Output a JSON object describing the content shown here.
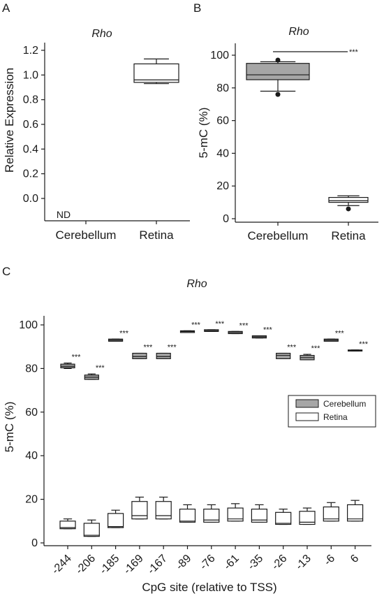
{
  "colors": {
    "cerebellum": "#a6a6a6",
    "retina": "#ffffff",
    "stroke": "#1a1a1a"
  },
  "chart_data": [
    {
      "panel": "A",
      "type": "box",
      "title": "Rho",
      "ylabel": "Relative Expression",
      "ylim": [
        -0.1,
        1.2
      ],
      "yticks": [
        "0.0",
        "0.2",
        "0.4",
        "0.6",
        "0.8",
        "1.0",
        "1.2"
      ],
      "categories": [
        "Cerebellum",
        "Retina"
      ],
      "boxes": [
        {
          "category": "Cerebellum",
          "label": "ND"
        },
        {
          "category": "Retina",
          "min": 0.93,
          "q1": 0.94,
          "median": 0.96,
          "q3": 1.09,
          "max": 1.13
        }
      ]
    },
    {
      "panel": "B",
      "type": "box",
      "title": "Rho",
      "ylabel": "5-mC (%)",
      "ylim": [
        0,
        100
      ],
      "yticks": [
        "0",
        "20",
        "40",
        "60",
        "80",
        "100"
      ],
      "categories": [
        "Cerebellum",
        "Retina"
      ],
      "boxes": [
        {
          "category": "Cerebellum",
          "min": 78,
          "q1": 85,
          "median": 88,
          "q3": 95,
          "max": 96,
          "outliers": [
            76,
            97
          ]
        },
        {
          "category": "Retina",
          "min": 8,
          "q1": 10,
          "median": 11,
          "q3": 13,
          "max": 14,
          "outliers": [
            6
          ]
        }
      ],
      "significance": "***"
    },
    {
      "panel": "C",
      "type": "box",
      "title": "Rho",
      "xlabel": "CpG site (relative to TSS)",
      "ylabel": "5-mC (%)",
      "ylim": [
        0,
        100
      ],
      "yticks": [
        "0",
        "20",
        "40",
        "60",
        "80",
        "100"
      ],
      "categories": [
        "-244",
        "-206",
        "-185",
        "-169",
        "-167",
        "-89",
        "-76",
        "-61",
        "-35",
        "-26",
        "-13",
        "-6",
        "6"
      ],
      "legend": {
        "position": "right",
        "entries": [
          "Cerebellum",
          "Retina"
        ]
      },
      "significance": [
        "***",
        "***",
        "***",
        "***",
        "***",
        "***",
        "***",
        "***",
        "***",
        "***",
        "***",
        "***",
        "***"
      ],
      "series": [
        {
          "name": "Cerebellum",
          "boxes": [
            {
              "min": 80,
              "q1": 80.3,
              "median": 81,
              "q3": 82,
              "max": 82.5
            },
            {
              "min": 75,
              "q1": 75,
              "median": 76,
              "q3": 77,
              "max": 77.5
            },
            {
              "min": 92.5,
              "q1": 92.5,
              "median": 93,
              "q3": 93.5,
              "max": 93.5
            },
            {
              "min": 84.5,
              "q1": 84.5,
              "median": 85.5,
              "q3": 87,
              "max": 87
            },
            {
              "min": 84.5,
              "q1": 84.5,
              "median": 85.5,
              "q3": 87,
              "max": 87
            },
            {
              "min": 96.5,
              "q1": 96.5,
              "median": 97,
              "q3": 97.3,
              "max": 97.3
            },
            {
              "min": 97,
              "q1": 97,
              "median": 97.3,
              "q3": 97.8,
              "max": 97.8
            },
            {
              "min": 96,
              "q1": 96,
              "median": 96.5,
              "q3": 97,
              "max": 97
            },
            {
              "min": 94,
              "q1": 94,
              "median": 94.5,
              "q3": 95,
              "max": 95
            },
            {
              "min": 84.5,
              "q1": 84.5,
              "median": 86,
              "q3": 87,
              "max": 87
            },
            {
              "min": 84,
              "q1": 84,
              "median": 85,
              "q3": 86,
              "max": 86.5
            },
            {
              "min": 92.5,
              "q1": 92.5,
              "median": 93,
              "q3": 93.5,
              "max": 93.5
            },
            {
              "min": 88,
              "q1": 88,
              "median": 88.3,
              "q3": 88.5,
              "max": 88.5
            }
          ]
        },
        {
          "name": "Retina",
          "boxes": [
            {
              "min": 6.5,
              "q1": 6.5,
              "median": 7,
              "q3": 10,
              "max": 11
            },
            {
              "min": 3,
              "q1": 3,
              "median": 3.5,
              "q3": 9,
              "max": 10.5
            },
            {
              "min": 7,
              "q1": 7,
              "median": 7.5,
              "q3": 13.5,
              "max": 15
            },
            {
              "min": 11,
              "q1": 11,
              "median": 12.5,
              "q3": 19,
              "max": 21
            },
            {
              "min": 11,
              "q1": 11,
              "median": 12.5,
              "q3": 19,
              "max": 21
            },
            {
              "min": 9.5,
              "q1": 9.5,
              "median": 10,
              "q3": 15.5,
              "max": 17.5
            },
            {
              "min": 9.5,
              "q1": 9.5,
              "median": 10.5,
              "q3": 15.5,
              "max": 17.5
            },
            {
              "min": 10,
              "q1": 10,
              "median": 11,
              "q3": 16,
              "max": 18
            },
            {
              "min": 9.5,
              "q1": 9.5,
              "median": 10.5,
              "q3": 15.5,
              "max": 17.5
            },
            {
              "min": 8.5,
              "q1": 8.5,
              "median": 9,
              "q3": 14,
              "max": 15.5
            },
            {
              "min": 8.5,
              "q1": 8.5,
              "median": 9.5,
              "q3": 14.5,
              "max": 16
            },
            {
              "min": 10,
              "q1": 10,
              "median": 11,
              "q3": 16.5,
              "max": 18.5
            },
            {
              "min": 10,
              "q1": 10,
              "median": 11,
              "q3": 17.5,
              "max": 19.5
            }
          ]
        }
      ]
    }
  ]
}
